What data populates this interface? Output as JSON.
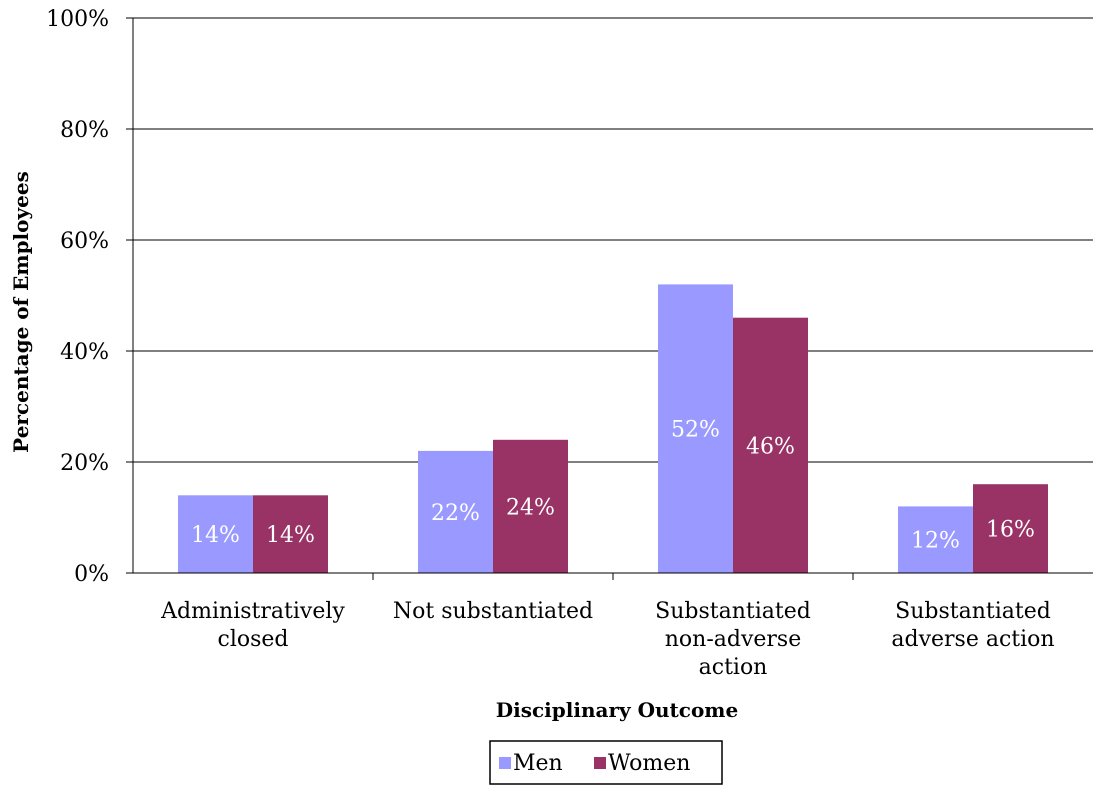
{
  "chart_data": {
    "type": "bar",
    "categories": [
      [
        "Administratively",
        "closed"
      ],
      [
        "Not substantiated"
      ],
      [
        "Substantiated",
        "non-adverse",
        "action"
      ],
      [
        "Substantiated",
        "adverse action"
      ]
    ],
    "series": [
      {
        "name": "Men",
        "values": [
          14,
          22,
          52,
          12
        ],
        "labels": [
          "14%",
          "22%",
          "52%",
          "12%"
        ],
        "color": "#9999ff"
      },
      {
        "name": "Women",
        "values": [
          14,
          24,
          46,
          16
        ],
        "labels": [
          "14%",
          "24%",
          "46%",
          "16%"
        ],
        "color": "#993366"
      }
    ],
    "xlabel": "Disciplinary Outcome",
    "ylabel": "Percentage of Employees",
    "ylim": [
      0,
      100
    ],
    "yticks": [
      0,
      20,
      40,
      60,
      80,
      100
    ],
    "ytick_labels": [
      "0%",
      "20%",
      "40%",
      "60%",
      "80%",
      "100%"
    ],
    "grid": true,
    "legend": "bottom-center",
    "colors": {
      "men": "#9999ff",
      "women": "#993366",
      "grid": "#000000"
    }
  }
}
